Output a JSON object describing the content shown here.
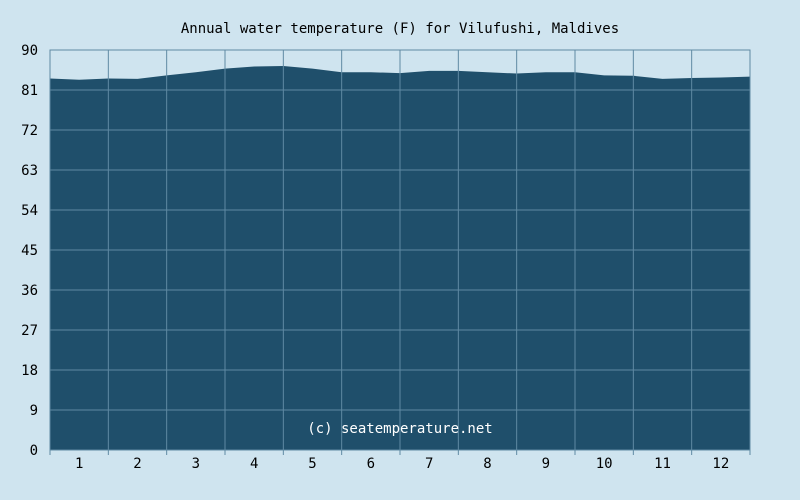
{
  "chart_data": {
    "type": "area",
    "title": "Annual water temperature (F) for Vilufushi, Maldives",
    "xlabel": "",
    "ylabel": "",
    "ylim": [
      0,
      90
    ],
    "yticks": [
      0,
      9,
      18,
      27,
      36,
      45,
      54,
      63,
      72,
      81,
      90
    ],
    "xlim": [
      0.5,
      12.5
    ],
    "xticks": [
      1,
      2,
      3,
      4,
      5,
      6,
      7,
      8,
      9,
      10,
      11,
      12
    ],
    "grid": true,
    "legend": "none",
    "fill_color": "#1f4f6b",
    "grid_color": "#5f8aa3",
    "background_color": "#cfe4ef",
    "watermark": "(c) seatemperature.net",
    "series": [
      {
        "x": [
          0.5,
          1.0,
          1.5,
          2.0,
          2.5,
          3.0,
          3.5,
          4.0,
          4.5,
          5.0,
          5.5,
          6.0,
          6.5,
          7.0,
          7.5,
          8.0,
          8.5,
          9.0,
          9.5,
          10.0,
          10.5,
          11.0,
          11.5,
          12.0,
          12.5
        ],
        "values": [
          83.6,
          83.3,
          83.6,
          83.5,
          84.3,
          85.0,
          85.8,
          86.3,
          86.4,
          85.8,
          85.0,
          85.0,
          84.8,
          85.3,
          85.3,
          85.0,
          84.7,
          85.0,
          85.0,
          84.3,
          84.2,
          83.5,
          83.7,
          83.8,
          84.0
        ]
      }
    ]
  }
}
